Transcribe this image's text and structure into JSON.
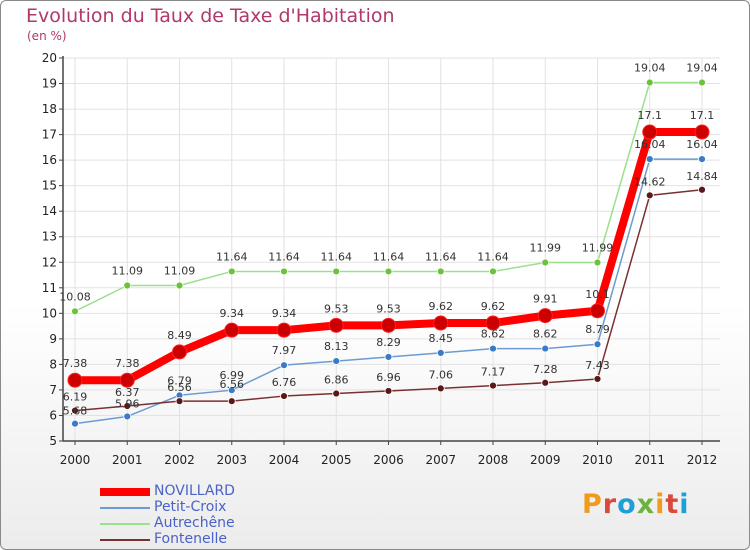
{
  "title": "Evolution du Taux de Taxe d'Habitation",
  "subtitle": "(en %)",
  "logo": {
    "text": "Proxiti",
    "colors": [
      "#f29a1c",
      "#d94a3c",
      "#1e9fd8",
      "#6cb33e",
      "#f29a1c",
      "#d94a3c",
      "#1e9fd8"
    ]
  },
  "chart_data": {
    "type": "line",
    "x": [
      "2000",
      "2001",
      "2002",
      "2003",
      "2004",
      "2005",
      "2006",
      "2007",
      "2008",
      "2009",
      "2010",
      "2011",
      "2012"
    ],
    "ylim": [
      5,
      20
    ],
    "yticks": [
      "5",
      "6",
      "7",
      "8",
      "9",
      "10",
      "11",
      "12",
      "13",
      "14",
      "15",
      "16",
      "17",
      "18",
      "19",
      "20"
    ],
    "grid": true,
    "legend_position": "bottom-left",
    "series": [
      {
        "name": "NOVILLARD",
        "color": "#ff0000",
        "marker_color": "#cc0000",
        "values": [
          7.38,
          7.38,
          8.49,
          9.34,
          9.34,
          9.53,
          9.53,
          9.62,
          9.62,
          9.91,
          10.1,
          17.1,
          17.1
        ],
        "labels": [
          "7.38",
          "7.38",
          "8.49",
          "9.34",
          "9.34",
          "9.53",
          "9.53",
          "9.62",
          "9.62",
          "9.91",
          "10.1",
          "17.1",
          "17.1"
        ]
      },
      {
        "name": "Petit-Croix",
        "color": "#6b9bd2",
        "marker_color": "#3a7bc8",
        "values": [
          5.68,
          5.96,
          6.79,
          6.99,
          7.97,
          8.13,
          8.29,
          8.45,
          8.62,
          8.62,
          8.79,
          16.04,
          16.04
        ],
        "labels": [
          "5.68",
          "5.96",
          "6.79",
          "6.99",
          "7.97",
          "8.13",
          "8.29",
          "8.45",
          "8.62",
          "8.62",
          "8.79",
          "16.04",
          "16.04"
        ]
      },
      {
        "name": "Autrechêne",
        "color": "#9be08a",
        "marker_color": "#6cc23c",
        "values": [
          10.08,
          11.09,
          11.09,
          11.64,
          11.64,
          11.64,
          11.64,
          11.64,
          11.64,
          11.99,
          11.99,
          19.04,
          19.04
        ],
        "labels": [
          "10.08",
          "11.09",
          "11.09",
          "11.64",
          "11.64",
          "11.64",
          "11.64",
          "11.64",
          "11.64",
          "11.99",
          "11.99",
          "19.04",
          "19.04"
        ]
      },
      {
        "name": "Fontenelle",
        "color": "#7a3030",
        "marker_color": "#5a1818",
        "values": [
          6.19,
          6.37,
          6.56,
          6.56,
          6.76,
          6.86,
          6.96,
          7.06,
          7.17,
          7.28,
          7.43,
          14.62,
          14.84
        ],
        "labels": [
          "6.19",
          "6.37",
          "6.56",
          "6.56",
          "6.76",
          "6.86",
          "6.96",
          "7.06",
          "7.17",
          "7.28",
          "7.43",
          "14.62",
          "14.84"
        ]
      }
    ]
  }
}
